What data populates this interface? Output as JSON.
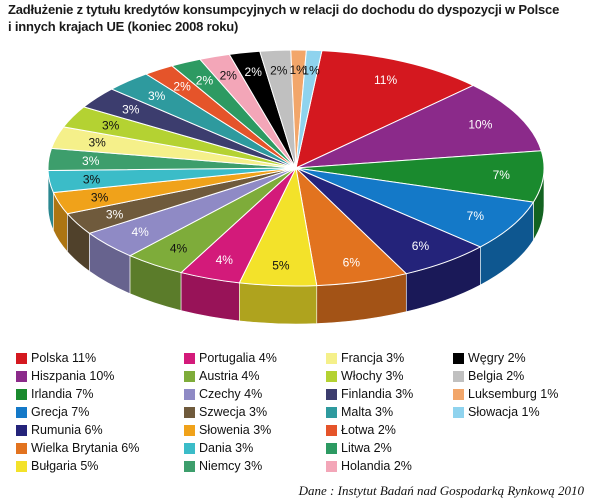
{
  "title_line1": "Zadłużenie z tytułu kredytów konsumpcyjnych w relacji do dochodu do dyspozycji w Polsce",
  "title_line2": "i innych krajach UE (koniec 2008 roku)",
  "source": "Dane : Instytut Badań nad Gospodarką Rynkową 2010",
  "chart_data": {
    "type": "pie",
    "title": "Zadłużenie z tytułu kredytów konsumpcyjnych w relacji do dochodu do dyspozycji w Polsce i innych krajach UE (koniec 2008 roku)",
    "unit": "%",
    "legend_position": "bottom",
    "slices": [
      {
        "label": "Polska",
        "value": 11,
        "color": "#d4181f"
      },
      {
        "label": "Hiszpania",
        "value": 10,
        "color": "#8b2a8a"
      },
      {
        "label": "Irlandia",
        "value": 7,
        "color": "#1a8a2e"
      },
      {
        "label": "Grecja",
        "value": 7,
        "color": "#1479c8"
      },
      {
        "label": "Rumunia",
        "value": 6,
        "color": "#24237a"
      },
      {
        "label": "Wielka Brytania",
        "value": 6,
        "color": "#e2731f"
      },
      {
        "label": "Bułgaria",
        "value": 5,
        "color": "#f3e22a"
      },
      {
        "label": "Portugalia",
        "value": 4,
        "color": "#d31a7a"
      },
      {
        "label": "Austria",
        "value": 4,
        "color": "#7eac3a"
      },
      {
        "label": "Czechy",
        "value": 4,
        "color": "#8f8ac5"
      },
      {
        "label": "Szwecja",
        "value": 3,
        "color": "#6f5a3c"
      },
      {
        "label": "Słowenia",
        "value": 3,
        "color": "#f0a21a"
      },
      {
        "label": "Dania",
        "value": 3,
        "color": "#3bbcc8"
      },
      {
        "label": "Niemcy",
        "value": 3,
        "color": "#3d9e6c"
      },
      {
        "label": "Francja",
        "value": 3,
        "color": "#f5f08a"
      },
      {
        "label": "Włochy",
        "value": 3,
        "color": "#b4d232"
      },
      {
        "label": "Finlandia",
        "value": 3,
        "color": "#3c3d6e"
      },
      {
        "label": "Malta",
        "value": 3,
        "color": "#2e9a9e"
      },
      {
        "label": "Łotwa",
        "value": 2,
        "color": "#e5542a"
      },
      {
        "label": "Litwa",
        "value": 2,
        "color": "#2d9a62"
      },
      {
        "label": "Holandia",
        "value": 2,
        "color": "#f3a6b8"
      },
      {
        "label": "Węgry",
        "value": 2,
        "color": "#000000"
      },
      {
        "label": "Belgia",
        "value": 2,
        "color": "#c0c0c0"
      },
      {
        "label": "Luksemburg",
        "value": 1,
        "color": "#f2a66a"
      },
      {
        "label": "Słowacja",
        "value": 1,
        "color": "#8fd3ee"
      }
    ],
    "legend_columns": [
      [
        "Polska",
        "Hiszpania",
        "Irlandia",
        "Grecja",
        "Rumunia",
        "Wielka Brytania",
        "Bułgaria"
      ],
      [
        "Portugalia",
        "Austria",
        "Czechy",
        "Szwecja",
        "Słowenia",
        "Dania",
        "Niemcy"
      ],
      [
        "Francja",
        "Włochy",
        "Finlandia",
        "Malta",
        "Łotwa",
        "Litwa",
        "Holandia"
      ],
      [
        "Węgry",
        "Belgia",
        "Luksemburg",
        "Słowacja"
      ]
    ]
  }
}
